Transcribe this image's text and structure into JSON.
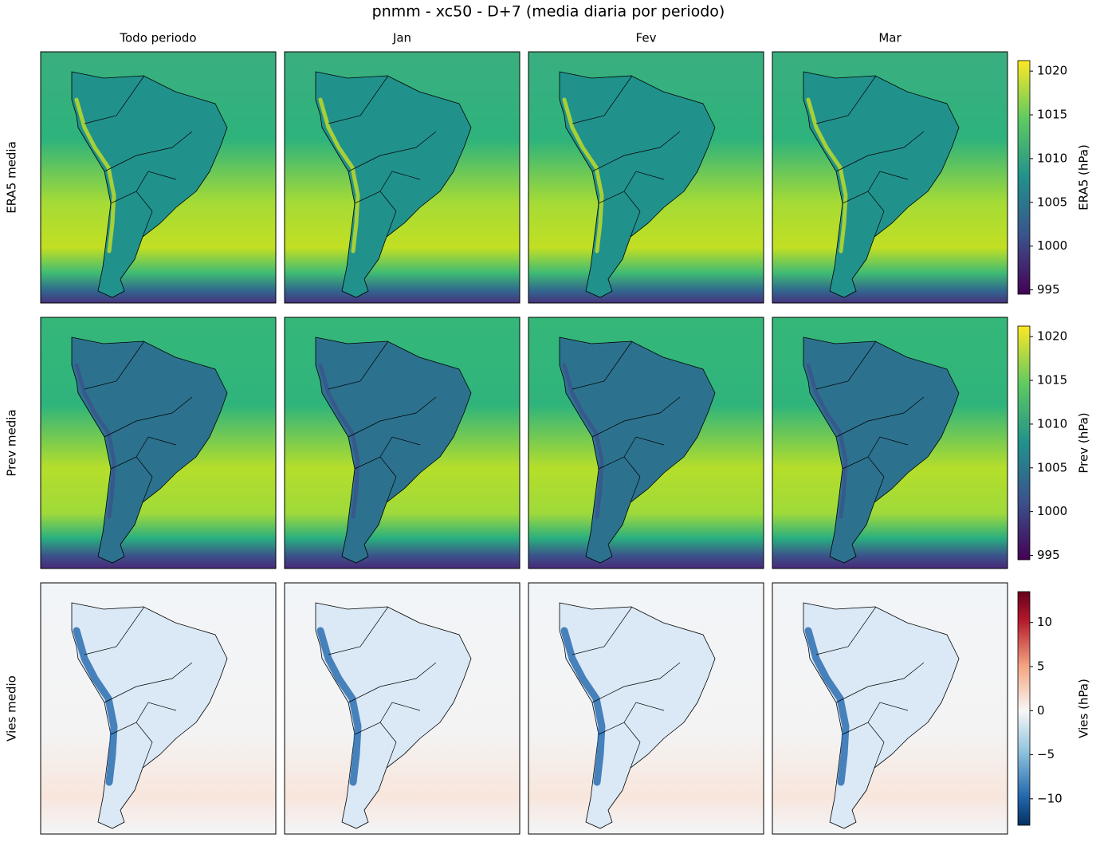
{
  "chart_data": {
    "type": "heatmap",
    "title": "pnmm - xc50 - D+7 (media diaria por periodo)",
    "columns": [
      "Todo periodo",
      "Jan",
      "Fev",
      "Mar"
    ],
    "rows": [
      {
        "label": "ERA5 media",
        "cmap": "viridis",
        "colorbar": {
          "label": "ERA5 (hPa)",
          "lim": [
            994.5,
            1021.2
          ],
          "ticks": [
            995,
            1000,
            1005,
            1010,
            1015,
            1020
          ]
        }
      },
      {
        "label": "Prev media",
        "cmap": "viridis",
        "colorbar": {
          "label": "Prev (hPa)",
          "lim": [
            994.5,
            1021.2
          ],
          "ticks": [
            995,
            1000,
            1005,
            1010,
            1015,
            1020
          ]
        }
      },
      {
        "label": "Vies medio",
        "cmap": "RdBu_r",
        "colorbar": {
          "label": "Vies (hPa)",
          "lim": [
            -13,
            13.5
          ],
          "ticks": [
            {
              "value": -10,
              "label": "−10"
            },
            {
              "value": -5,
              "label": "−5"
            },
            0,
            5,
            10
          ]
        }
      }
    ]
  }
}
